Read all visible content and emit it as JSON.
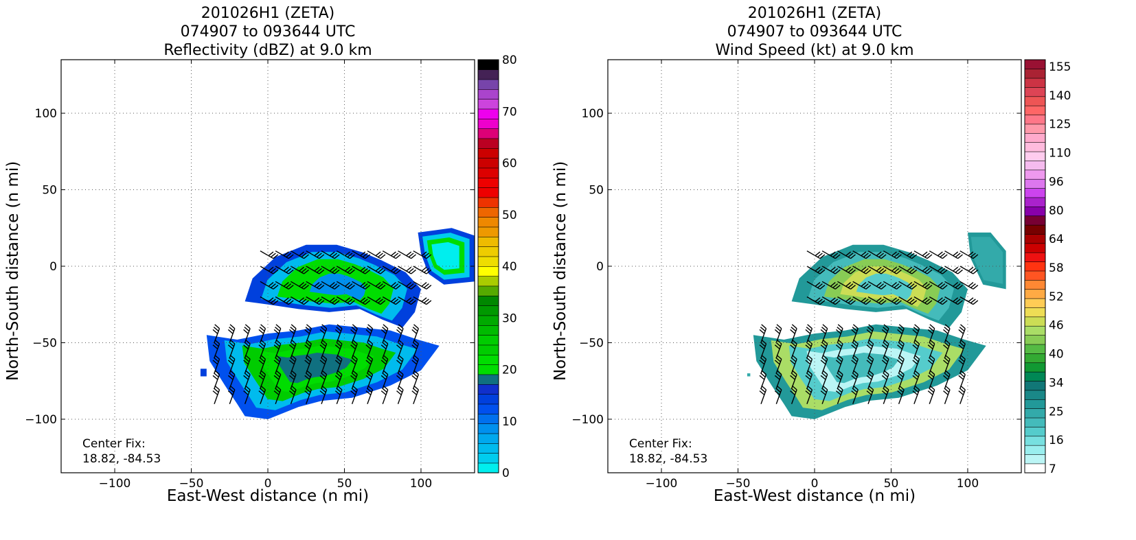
{
  "chart_data": [
    {
      "type": "heatmap",
      "title_lines": [
        "201026H1 (ZETA)",
        "074907 to 093644 UTC",
        "Reflectivity (dBZ) at 9.0 km"
      ],
      "xlabel": "East-West distance (n mi)",
      "ylabel": "North-South distance (n mi)",
      "xlim": [
        -135,
        135
      ],
      "ylim": [
        -135,
        135
      ],
      "xticks": [
        -100,
        -50,
        0,
        50,
        100
      ],
      "yticks": [
        100,
        50,
        0,
        -50,
        -100
      ],
      "xtick_labels": [
        "−100",
        "−50",
        "0",
        "50",
        "100"
      ],
      "ytick_labels": [
        "100",
        "50",
        "0",
        "−50",
        "−100"
      ],
      "grid": true,
      "center_fix": [
        "Center Fix:",
        "18.82, -84.53"
      ],
      "colorbar": {
        "min": 0,
        "max": 80,
        "step": 2,
        "tick_values": [
          0,
          10,
          20,
          30,
          40,
          50,
          60,
          70,
          80
        ],
        "tick_labels": [
          "0",
          "10",
          "20",
          "30",
          "40",
          "50",
          "60",
          "70",
          "80"
        ],
        "colors": [
          "#00eeee",
          "#00ccee",
          "#00bbee",
          "#00a8ee",
          "#0090ee",
          "#0070ee",
          "#0050ee",
          "#0040dd",
          "#1030cc",
          "#107080",
          "#00dd00",
          "#00dd00",
          "#00cc00",
          "#00cc00",
          "#00bb00",
          "#00aa00",
          "#009900",
          "#008800",
          "#55aa00",
          "#aacc00",
          "#ffff00",
          "#eedd00",
          "#eecc00",
          "#eebb00",
          "#ee9900",
          "#ee8800",
          "#ee6600",
          "#ee3300",
          "#ee0000",
          "#ee0000",
          "#dd0000",
          "#cc0000",
          "#cc0000",
          "#bb0022",
          "#dd0077",
          "#ee00cc",
          "#ee00ee",
          "#cc44dd",
          "#aa44cc",
          "#7744aa",
          "#442255",
          "#000000"
        ]
      },
      "field_regions": [
        {
          "name": "north-band",
          "points": [
            [
              -15,
              -23
            ],
            [
              -10,
              -8
            ],
            [
              5,
              6
            ],
            [
              25,
              14
            ],
            [
              45,
              14
            ],
            [
              62,
              9
            ],
            [
              74,
              4
            ],
            [
              90,
              -4
            ],
            [
              100,
              -15
            ],
            [
              96,
              -30
            ],
            [
              88,
              -40
            ],
            [
              75,
              -35
            ],
            [
              60,
              -28
            ],
            [
              40,
              -30
            ],
            [
              20,
              -28
            ],
            [
              0,
              -25
            ]
          ],
          "colors": [
            "#0040dd",
            "#00bbee",
            "#00dd00",
            "#00dd00",
            "#0090ee"
          ]
        },
        {
          "name": "south-band",
          "points": [
            [
              -40,
              -45
            ],
            [
              -20,
              -48
            ],
            [
              0,
              -44
            ],
            [
              20,
              -42
            ],
            [
              40,
              -38
            ],
            [
              60,
              -40
            ],
            [
              80,
              -42
            ],
            [
              98,
              -48
            ],
            [
              112,
              -52
            ],
            [
              100,
              -68
            ],
            [
              80,
              -78
            ],
            [
              55,
              -86
            ],
            [
              35,
              -88
            ],
            [
              20,
              -92
            ],
            [
              0,
              -100
            ],
            [
              -15,
              -98
            ],
            [
              -20,
              -90
            ],
            [
              -28,
              -78
            ],
            [
              -38,
              -62
            ]
          ],
          "colors": [
            "#0050ee",
            "#00bbee",
            "#00cc00",
            "#00dd00",
            "#107080"
          ]
        },
        {
          "name": "east-arm",
          "points": [
            [
              98,
              22
            ],
            [
              120,
              25
            ],
            [
              135,
              20
            ],
            [
              135,
              -10
            ],
            [
              115,
              -12
            ],
            [
              105,
              -5
            ],
            [
              100,
              8
            ]
          ],
          "colors": [
            "#0040dd",
            "#00ccee",
            "#00dd00",
            "#00eeee"
          ]
        },
        {
          "name": "west-blob",
          "points": [
            [
              -44,
              -67
            ],
            [
              -40,
              -67
            ],
            [
              -40,
              -72
            ],
            [
              -44,
              -72
            ]
          ],
          "colors": [
            "#0040dd"
          ]
        }
      ],
      "wind_barbs": "wind barbs present over echo regions"
    },
    {
      "type": "heatmap",
      "title_lines": [
        "201026H1 (ZETA)",
        "074907 to 093644 UTC",
        "Wind Speed (kt) at 9.0 km"
      ],
      "xlabel": "East-West distance (n mi)",
      "ylabel": "North-South distance (n mi)",
      "xlim": [
        -135,
        135
      ],
      "ylim": [
        -135,
        135
      ],
      "xticks": [
        -100,
        -50,
        0,
        50,
        100
      ],
      "yticks": [
        100,
        50,
        0,
        -50,
        -100
      ],
      "xtick_labels": [
        "−100",
        "−50",
        "0",
        "50",
        "100"
      ],
      "ytick_labels": [
        "100",
        "50",
        "0",
        "−50",
        "−100"
      ],
      "grid": true,
      "center_fix": [
        "Center Fix:",
        "18.82, -84.53"
      ],
      "colorbar": {
        "tick_labels": [
          "7",
          "16",
          "25",
          "34",
          "40",
          "46",
          "52",
          "58",
          "64",
          "80",
          "96",
          "110",
          "125",
          "140",
          "155"
        ],
        "colors": [
          "#ffffff",
          "#bbf5f5",
          "#99eeee",
          "#77e0e0",
          "#55cccc",
          "#44bbbb",
          "#33aaaa",
          "#229999",
          "#1a8888",
          "#117777",
          "#008855",
          "#119933",
          "#33aa33",
          "#55bb44",
          "#88cc55",
          "#aadd66",
          "#ccdd55",
          "#eedd55",
          "#ffcc55",
          "#ffaa44",
          "#ff8833",
          "#ff5522",
          "#ff3311",
          "#ee1111",
          "#cc0000",
          "#aa0000",
          "#770000",
          "#770033",
          "#8800aa",
          "#aa22cc",
          "#cc44ee",
          "#dd77ee",
          "#ee99ee",
          "#f5bbee",
          "#ffccee",
          "#ffbbdd",
          "#ffaacc",
          "#ff99aa",
          "#ff7788",
          "#ff6666",
          "#ee5555",
          "#dd4455",
          "#cc3344",
          "#aa2233",
          "#991133"
        ]
      },
      "field_regions": [
        {
          "name": "north-band",
          "points": [
            [
              -15,
              -23
            ],
            [
              -10,
              -8
            ],
            [
              5,
              6
            ],
            [
              25,
              14
            ],
            [
              45,
              14
            ],
            [
              62,
              9
            ],
            [
              74,
              4
            ],
            [
              90,
              -4
            ],
            [
              100,
              -15
            ],
            [
              96,
              -30
            ],
            [
              88,
              -40
            ],
            [
              75,
              -35
            ],
            [
              60,
              -28
            ],
            [
              40,
              -30
            ],
            [
              20,
              -28
            ],
            [
              0,
              -25
            ]
          ],
          "colors": [
            "#229999",
            "#44bbbb",
            "#88cc55",
            "#ccdd55",
            "#55cccc"
          ]
        },
        {
          "name": "south-band",
          "points": [
            [
              -40,
              -45
            ],
            [
              -20,
              -48
            ],
            [
              0,
              -44
            ],
            [
              20,
              -42
            ],
            [
              40,
              -38
            ],
            [
              60,
              -40
            ],
            [
              80,
              -42
            ],
            [
              98,
              -48
            ],
            [
              112,
              -52
            ],
            [
              100,
              -68
            ],
            [
              80,
              -78
            ],
            [
              55,
              -86
            ],
            [
              35,
              -88
            ],
            [
              20,
              -92
            ],
            [
              0,
              -100
            ],
            [
              -15,
              -98
            ],
            [
              -20,
              -90
            ],
            [
              -28,
              -78
            ],
            [
              -38,
              -62
            ]
          ],
          "colors": [
            "#229999",
            "#aadd66",
            "#55cccc",
            "#bbf5f5",
            "#44bbbb"
          ]
        },
        {
          "name": "east-arm",
          "points": [
            [
              100,
              22
            ],
            [
              115,
              22
            ],
            [
              125,
              10
            ],
            [
              125,
              -15
            ],
            [
              110,
              -12
            ],
            [
              102,
              5
            ]
          ],
          "colors": [
            "#229999",
            "#33aaaa"
          ]
        },
        {
          "name": "west-blob",
          "points": [
            [
              -44,
              -70
            ],
            [
              -42,
              -70
            ],
            [
              -42,
              -72
            ],
            [
              -44,
              -72
            ]
          ],
          "colors": [
            "#33aaaa"
          ]
        }
      ],
      "wind_barbs": "wind barbs present over echo regions"
    }
  ]
}
